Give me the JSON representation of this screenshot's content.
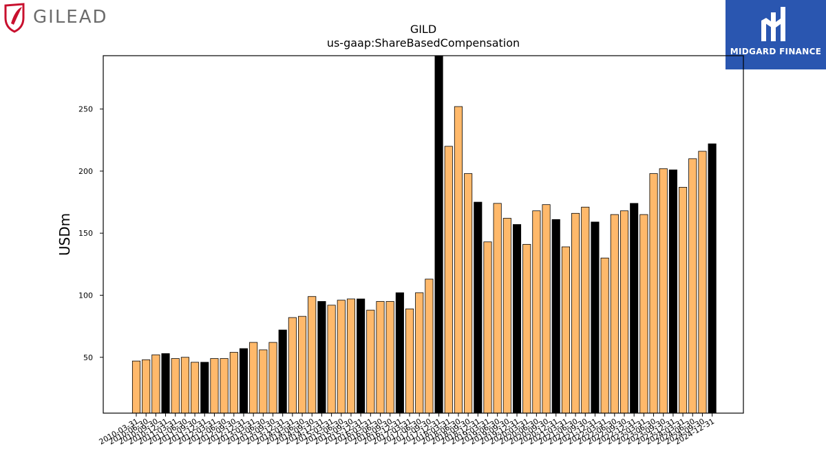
{
  "logos": {
    "left": {
      "text": "GILEAD",
      "accent": "#c8102e"
    },
    "right": {
      "text": "MIDGARD FINANCE",
      "background": "#2a56b0"
    }
  },
  "chart_data": {
    "type": "bar",
    "title": "GILD",
    "subtitle": "us-gaap:ShareBasedCompensation",
    "xlabel": "",
    "ylabel": "USDm",
    "ylim": [
      5,
      293
    ],
    "yticks": [
      50,
      100,
      150,
      200,
      250
    ],
    "grid": false,
    "colors": {
      "quarter": "#ffb96b",
      "annual": "#000000",
      "edge": "#000000"
    },
    "categories": [
      "2010-03-31",
      "2010-06-30",
      "2010-09-30",
      "2010-12-31",
      "2011-03-31",
      "2011-06-30",
      "2011-09-30",
      "2011-12-31",
      "2012-03-31",
      "2012-06-30",
      "2012-09-30",
      "2012-12-31",
      "2013-03-31",
      "2013-06-30",
      "2013-09-30",
      "2013-12-31",
      "2014-03-31",
      "2014-06-30",
      "2014-09-30",
      "2014-12-31",
      "2015-03-31",
      "2015-06-30",
      "2015-09-30",
      "2015-12-31",
      "2016-03-31",
      "2016-06-30",
      "2016-09-30",
      "2016-12-31",
      "2017-03-31",
      "2017-06-30",
      "2017-09-30",
      "2017-12-31",
      "2018-03-31",
      "2018-06-30",
      "2018-09-30",
      "2018-12-31",
      "2019-03-31",
      "2019-06-30",
      "2019-09-30",
      "2019-12-31",
      "2020-03-31",
      "2020-06-30",
      "2020-09-30",
      "2020-12-31",
      "2021-03-31",
      "2021-06-30",
      "2021-09-30",
      "2021-12-31",
      "2022-03-31",
      "2022-06-30",
      "2022-09-30",
      "2022-12-31",
      "2023-03-31",
      "2023-06-30",
      "2023-09-30",
      "2023-12-31",
      "2024-03-31",
      "2024-06-30",
      "2024-09-30",
      "2024-12-31"
    ],
    "values": [
      47,
      48,
      52,
      53,
      49,
      50,
      46,
      46,
      49,
      49,
      54,
      57,
      62,
      56,
      62,
      72,
      82,
      83,
      99,
      95,
      92,
      96,
      97,
      97,
      88,
      95,
      95,
      102,
      89,
      102,
      113,
      293,
      220,
      252,
      198,
      175,
      143,
      174,
      162,
      157,
      141,
      168,
      173,
      161,
      139,
      166,
      171,
      159,
      130,
      165,
      168,
      174,
      165,
      198,
      202,
      201,
      187,
      210,
      216,
      222
    ],
    "annual_flags": [
      false,
      false,
      false,
      true,
      false,
      false,
      false,
      true,
      false,
      false,
      false,
      true,
      false,
      false,
      false,
      true,
      false,
      false,
      false,
      true,
      false,
      false,
      false,
      true,
      false,
      false,
      false,
      true,
      false,
      false,
      false,
      true,
      false,
      false,
      false,
      true,
      false,
      false,
      false,
      true,
      false,
      false,
      false,
      true,
      false,
      false,
      false,
      true,
      false,
      false,
      false,
      true,
      false,
      false,
      false,
      true,
      false,
      false,
      false,
      true
    ]
  }
}
